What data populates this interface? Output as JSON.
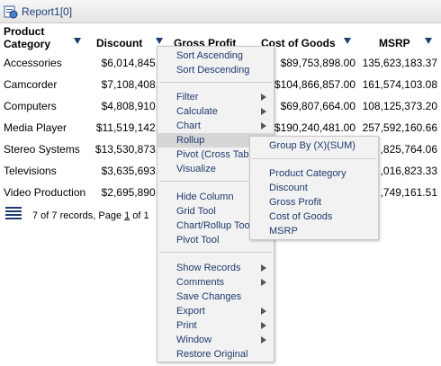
{
  "window": {
    "title": "Report1[0]",
    "icon": "report-icon"
  },
  "table": {
    "headers": [
      {
        "label_line1": "Product",
        "label_line2": "Category"
      },
      {
        "label": "Discount"
      },
      {
        "label": "Gross Profit"
      },
      {
        "label": "Cost of Goods"
      },
      {
        "label": "MSRP"
      }
    ],
    "rows": [
      {
        "category": "Accessories",
        "discount": "$6,014,845.",
        "cost": "$89,753,898.00",
        "msrp": "135,623,183.37"
      },
      {
        "category": "Camcorder",
        "discount": "$7,108,408.",
        "cost": "$104,866,857.00",
        "msrp": "161,574,103.08"
      },
      {
        "category": "Computers",
        "discount": "$4,808,910.",
        "cost": "$69,807,664.00",
        "msrp": "108,125,373.20"
      },
      {
        "category": "Media Player",
        "discount": "$11,519,142.",
        "cost": "$190,240,481.00",
        "msrp": "257,592,160.66"
      },
      {
        "category": "Stereo Systems",
        "discount": "$13,530,873.",
        "cost": "",
        "msrp": ",825,764.06"
      },
      {
        "category": "Televisions",
        "discount": "$3,635,693.",
        "cost": "",
        "msrp": ",016,823.33"
      },
      {
        "category": "Video Production",
        "discount": "$2,695,890.",
        "cost": "",
        "msrp": ",749,161.51"
      }
    ]
  },
  "footer": {
    "prefix": "7 of 7 records, Page ",
    "page": "1",
    "suffix": " of 1"
  },
  "context_menu": {
    "sort_ascending": "Sort Ascending",
    "sort_descending": "Sort Descending",
    "filter": "Filter",
    "calculate": "Calculate",
    "chart": "Chart",
    "rollup": "Rollup",
    "pivot_cross_tab": "Pivot (Cross Tab)",
    "visualize": "Visualize",
    "hide_column": "Hide Column",
    "grid_tool": "Grid Tool",
    "chart_rollup_tool": "Chart/Rollup Tool",
    "pivot_tool": "Pivot Tool",
    "show_records": "Show Records",
    "comments": "Comments",
    "save_changes": "Save Changes",
    "export": "Export",
    "print": "Print",
    "window": "Window",
    "restore_original": "Restore Original"
  },
  "rollup_submenu": {
    "group_by": "Group By (X)(SUM)",
    "items": [
      "Product Category",
      "Discount",
      "Gross Profit",
      "Cost of Goods",
      "MSRP"
    ]
  },
  "colors": {
    "menu_text": "#1f3a6e",
    "menu_bg": "#f2f2f2",
    "highlight": "#d6d6d6"
  }
}
